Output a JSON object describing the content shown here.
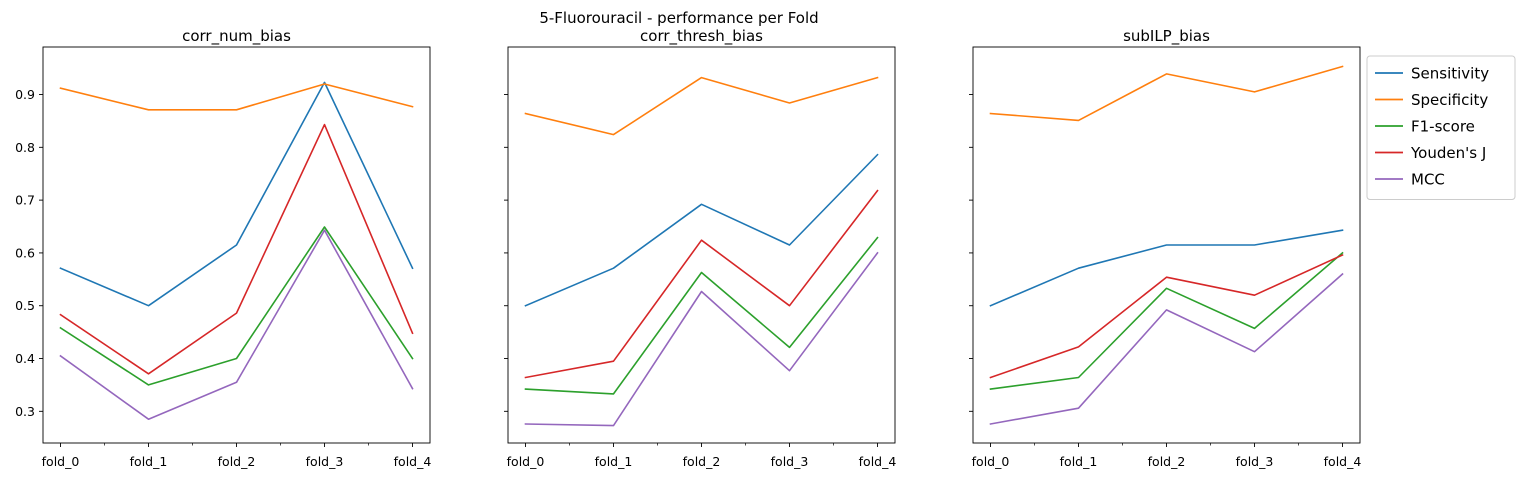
{
  "figure": {
    "title": "5-Fluorouracil - performance per Fold"
  },
  "chart_data": [
    {
      "type": "line",
      "title": "corr_num_bias",
      "xlabel": "",
      "ylabel": "",
      "categories": [
        "fold_0",
        "fold_1",
        "fold_2",
        "fold_3",
        "fold_4"
      ],
      "ylim": [
        0.24,
        0.99
      ],
      "yticks": [
        0.3,
        0.4,
        0.5,
        0.6,
        0.7,
        0.8,
        0.9
      ],
      "series": [
        {
          "name": "Sensitivity",
          "color": "#1f77b4",
          "values": [
            0.571,
            0.5,
            0.615,
            0.923,
            0.571
          ]
        },
        {
          "name": "Specificity",
          "color": "#ff7f0e",
          "values": [
            0.912,
            0.871,
            0.871,
            0.92,
            0.877
          ]
        },
        {
          "name": "F1-score",
          "color": "#2ca02c",
          "values": [
            0.458,
            0.35,
            0.4,
            0.649,
            0.4
          ]
        },
        {
          "name": "Youden's J",
          "color": "#d62728",
          "values": [
            0.483,
            0.371,
            0.486,
            0.843,
            0.448
          ]
        },
        {
          "name": "MCC",
          "color": "#9467bd",
          "values": [
            0.405,
            0.285,
            0.355,
            0.643,
            0.343
          ]
        }
      ]
    },
    {
      "type": "line",
      "title": "corr_thresh_bias",
      "xlabel": "",
      "ylabel": "",
      "categories": [
        "fold_0",
        "fold_1",
        "fold_2",
        "fold_3",
        "fold_4"
      ],
      "ylim": [
        0.24,
        0.99
      ],
      "yticks": [
        0.3,
        0.4,
        0.5,
        0.6,
        0.7,
        0.8,
        0.9
      ],
      "series": [
        {
          "name": "Sensitivity",
          "color": "#1f77b4",
          "values": [
            0.5,
            0.571,
            0.692,
            0.615,
            0.786
          ]
        },
        {
          "name": "Specificity",
          "color": "#ff7f0e",
          "values": [
            0.864,
            0.824,
            0.932,
            0.884,
            0.932
          ]
        },
        {
          "name": "F1-score",
          "color": "#2ca02c",
          "values": [
            0.342,
            0.333,
            0.563,
            0.421,
            0.629
          ]
        },
        {
          "name": "Youden's J",
          "color": "#d62728",
          "values": [
            0.364,
            0.395,
            0.624,
            0.5,
            0.718
          ]
        },
        {
          "name": "MCC",
          "color": "#9467bd",
          "values": [
            0.276,
            0.273,
            0.527,
            0.377,
            0.6
          ]
        }
      ]
    },
    {
      "type": "line",
      "title": "subILP_bias",
      "xlabel": "",
      "ylabel": "",
      "categories": [
        "fold_0",
        "fold_1",
        "fold_2",
        "fold_3",
        "fold_4"
      ],
      "ylim": [
        0.24,
        0.99
      ],
      "yticks": [
        0.3,
        0.4,
        0.5,
        0.6,
        0.7,
        0.8,
        0.9
      ],
      "series": [
        {
          "name": "Sensitivity",
          "color": "#1f77b4",
          "values": [
            0.5,
            0.571,
            0.615,
            0.615,
            0.643
          ]
        },
        {
          "name": "Specificity",
          "color": "#ff7f0e",
          "values": [
            0.864,
            0.851,
            0.939,
            0.905,
            0.953
          ]
        },
        {
          "name": "F1-score",
          "color": "#2ca02c",
          "values": [
            0.342,
            0.364,
            0.533,
            0.457,
            0.6
          ]
        },
        {
          "name": "Youden's J",
          "color": "#d62728",
          "values": [
            0.364,
            0.422,
            0.554,
            0.52,
            0.596
          ]
        },
        {
          "name": "MCC",
          "color": "#9467bd",
          "values": [
            0.276,
            0.306,
            0.492,
            0.413,
            0.56
          ]
        }
      ]
    }
  ],
  "legend": {
    "placement": "outside-right-top",
    "entries": [
      {
        "label": "Sensitivity",
        "color": "#1f77b4"
      },
      {
        "label": "Specificity",
        "color": "#ff7f0e"
      },
      {
        "label": "F1-score",
        "color": "#2ca02c"
      },
      {
        "label": "Youden's J",
        "color": "#d62728"
      },
      {
        "label": "MCC",
        "color": "#9467bd"
      }
    ]
  }
}
